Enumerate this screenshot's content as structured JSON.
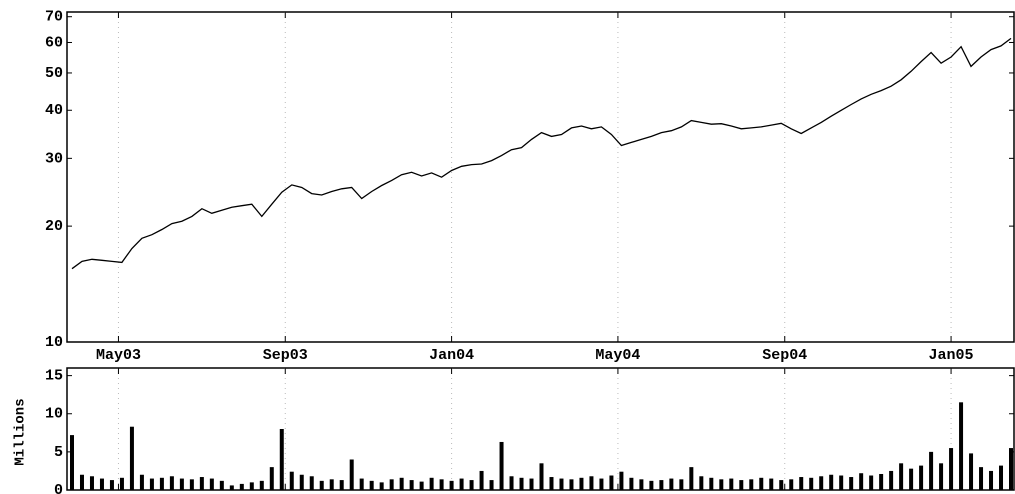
{
  "chart_data": [
    {
      "type": "line",
      "log_scale": true,
      "grid": true,
      "color": "#000000",
      "x": [
        2003.24,
        2003.26,
        2003.28,
        2003.3,
        2003.32,
        2003.34,
        2003.36,
        2003.38,
        2003.4,
        2003.42,
        2003.44,
        2003.46,
        2003.48,
        2003.5,
        2003.52,
        2003.54,
        2003.56,
        2003.58,
        2003.6,
        2003.62,
        2003.64,
        2003.66,
        2003.68,
        2003.7,
        2003.72,
        2003.74,
        2003.76,
        2003.78,
        2003.8,
        2003.82,
        2003.84,
        2003.86,
        2003.88,
        2003.9,
        2003.92,
        2003.94,
        2003.96,
        2003.98,
        2004.0,
        2004.02,
        2004.04,
        2004.06,
        2004.08,
        2004.1,
        2004.12,
        2004.14,
        2004.16,
        2004.18,
        2004.2,
        2004.22,
        2004.24,
        2004.26,
        2004.28,
        2004.3,
        2004.32,
        2004.34,
        2004.36,
        2004.38,
        2004.4,
        2004.42,
        2004.44,
        2004.46,
        2004.48,
        2004.5,
        2004.52,
        2004.54,
        2004.56,
        2004.58,
        2004.6,
        2004.62,
        2004.64,
        2004.66,
        2004.68,
        2004.7,
        2004.72,
        2004.74,
        2004.76,
        2004.78,
        2004.8,
        2004.82,
        2004.84,
        2004.86,
        2004.88,
        2004.9,
        2004.92,
        2004.94,
        2004.96,
        2004.98,
        2005.0,
        2005.02,
        2005.04,
        2005.06,
        2005.08,
        2005.1,
        2005.12
      ],
      "values": [
        15.5,
        16.2,
        16.4,
        16.3,
        16.2,
        16.1,
        17.5,
        18.6,
        19.0,
        19.6,
        20.3,
        20.6,
        21.2,
        22.2,
        21.6,
        22.0,
        22.4,
        22.6,
        22.8,
        21.2,
        22.8,
        24.5,
        25.6,
        25.2,
        24.3,
        24.1,
        24.6,
        25.0,
        25.2,
        23.6,
        24.6,
        25.5,
        26.3,
        27.2,
        27.6,
        27.0,
        27.5,
        26.8,
        27.9,
        28.6,
        28.9,
        29.0,
        29.6,
        30.5,
        31.6,
        32.0,
        33.6,
        35.0,
        34.2,
        34.6,
        36.0,
        36.4,
        35.8,
        36.2,
        34.6,
        32.4,
        33.0,
        33.6,
        34.2,
        35.0,
        35.4,
        36.2,
        37.6,
        37.2,
        36.8,
        36.9,
        36.4,
        35.8,
        36.0,
        36.2,
        36.6,
        37.0,
        35.8,
        34.8,
        36.0,
        37.2,
        38.6,
        40.0,
        41.4,
        42.8,
        44.0,
        45.0,
        46.2,
        48.0,
        50.5,
        53.5,
        56.5,
        53.0,
        55.0,
        58.5,
        52.0,
        55.0,
        57.5,
        58.8,
        61.5
      ],
      "xlim": [
        2003.23,
        2005.126
      ],
      "xticks": [
        {
          "value": 2003.333,
          "label": "May03"
        },
        {
          "value": 2003.667,
          "label": "Sep03"
        },
        {
          "value": 2004.0,
          "label": "Jan04"
        },
        {
          "value": 2004.333,
          "label": "May04"
        },
        {
          "value": 2004.667,
          "label": "Sep04"
        },
        {
          "value": 2005.0,
          "label": "Jan05"
        }
      ],
      "ylim": [
        10,
        72
      ],
      "yticks": [
        10,
        20,
        30,
        40,
        50,
        60,
        70
      ]
    },
    {
      "type": "bar",
      "grid": true,
      "color": "#000000",
      "ylabel": "Millions",
      "x": [
        2003.24,
        2003.26,
        2003.28,
        2003.3,
        2003.32,
        2003.34,
        2003.36,
        2003.38,
        2003.4,
        2003.42,
        2003.44,
        2003.46,
        2003.48,
        2003.5,
        2003.52,
        2003.54,
        2003.56,
        2003.58,
        2003.6,
        2003.62,
        2003.64,
        2003.66,
        2003.68,
        2003.7,
        2003.72,
        2003.74,
        2003.76,
        2003.78,
        2003.8,
        2003.82,
        2003.84,
        2003.86,
        2003.88,
        2003.9,
        2003.92,
        2003.94,
        2003.96,
        2003.98,
        2004.0,
        2004.02,
        2004.04,
        2004.06,
        2004.08,
        2004.1,
        2004.12,
        2004.14,
        2004.16,
        2004.18,
        2004.2,
        2004.22,
        2004.24,
        2004.26,
        2004.28,
        2004.3,
        2004.32,
        2004.34,
        2004.36,
        2004.38,
        2004.4,
        2004.42,
        2004.44,
        2004.46,
        2004.48,
        2004.5,
        2004.52,
        2004.54,
        2004.56,
        2004.58,
        2004.6,
        2004.62,
        2004.64,
        2004.66,
        2004.68,
        2004.7,
        2004.72,
        2004.74,
        2004.76,
        2004.78,
        2004.8,
        2004.82,
        2004.84,
        2004.86,
        2004.88,
        2004.9,
        2004.92,
        2004.94,
        2004.96,
        2004.98,
        2005.0,
        2005.02,
        2005.04,
        2005.06,
        2005.08,
        2005.1,
        2005.12
      ],
      "values": [
        7.2,
        2.0,
        1.8,
        1.5,
        1.3,
        1.6,
        8.3,
        2.0,
        1.5,
        1.6,
        1.8,
        1.5,
        1.4,
        1.7,
        1.5,
        1.2,
        0.6,
        0.8,
        1.0,
        1.2,
        3.0,
        8.0,
        2.4,
        2.0,
        1.8,
        1.2,
        1.4,
        1.3,
        4.0,
        1.5,
        1.2,
        1.0,
        1.4,
        1.6,
        1.3,
        1.1,
        1.6,
        1.4,
        1.2,
        1.5,
        1.3,
        2.5,
        1.3,
        6.3,
        1.8,
        1.6,
        1.5,
        3.5,
        1.7,
        1.5,
        1.4,
        1.6,
        1.8,
        1.5,
        1.9,
        2.4,
        1.6,
        1.4,
        1.2,
        1.3,
        1.5,
        1.4,
        3.0,
        1.8,
        1.6,
        1.4,
        1.5,
        1.3,
        1.4,
        1.6,
        1.5,
        1.3,
        1.4,
        1.7,
        1.6,
        1.8,
        2.0,
        1.9,
        1.7,
        2.2,
        1.9,
        2.1,
        2.5,
        3.5,
        2.8,
        3.2,
        5.0,
        3.5,
        5.5,
        11.5,
        4.8,
        3.0,
        2.5,
        3.2,
        5.5
      ],
      "xlim": [
        2003.23,
        2005.126
      ],
      "ylim": [
        0,
        16
      ],
      "yticks": [
        0,
        5,
        10,
        15
      ]
    }
  ]
}
